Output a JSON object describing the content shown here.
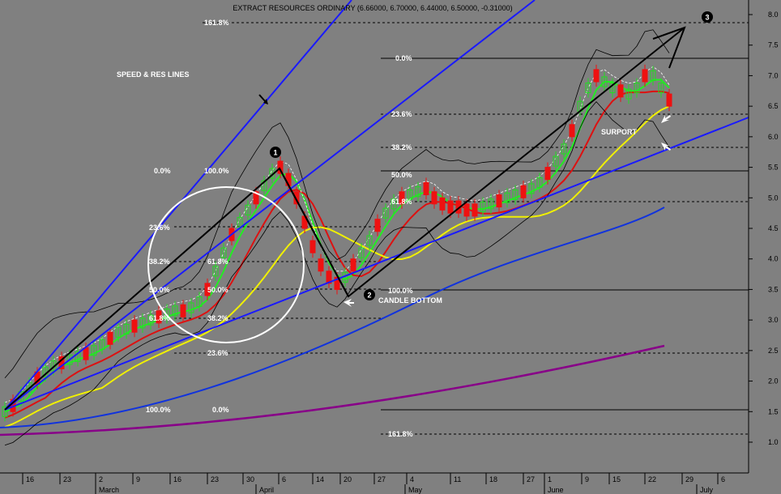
{
  "title": "EXTRACT RESOURCES ORDINARY (6.66000, 6.70000, 6.44000, 6.50000, -0.31000)",
  "colors": {
    "background": "#808080",
    "speed_lines": "#1a1aff",
    "trend_black": "#000000",
    "ma_green": "#22ee22",
    "ma_red": "#dd1111",
    "ma_yellow": "#f0f000",
    "ma_blue": "#1133dd",
    "ma_purple": "#880088",
    "bullish": "#22dd22",
    "bearish": "#ee1111"
  },
  "chart_data": {
    "type": "candlestick",
    "title": "EXTRACT RESOURCES ORDINARY (6.66000, 6.70000, 6.44000, 6.50000, -0.31000)",
    "ylim": [
      0.5,
      8.2
    ],
    "y_ticks": [
      "1.0",
      "1.5",
      "2.0",
      "2.5",
      "3.0",
      "3.5",
      "4.0",
      "4.5",
      "5.0",
      "5.5",
      "6.0",
      "6.5",
      "7.0",
      "7.5",
      "8.0"
    ],
    "x_ticks": [
      "16",
      "23",
      "2",
      "9",
      "16",
      "23",
      "30",
      "6",
      "14",
      "20",
      "27",
      "4",
      "11",
      "18",
      "27",
      "1",
      "9",
      "15",
      "22",
      "29",
      "6"
    ],
    "months": [
      "March",
      "April",
      "May",
      "June",
      "July"
    ],
    "last_bar": {
      "open": 6.66,
      "high": 6.7,
      "low": 6.44,
      "close": 6.5,
      "change": -0.31
    },
    "annotations": {
      "speed_label": "SPEED & RES LINES",
      "candle_bottom": "CANDLE BOTTOM",
      "support": "SURPORT",
      "point1": "1",
      "point2": "2",
      "point3": "3"
    },
    "fib_left": {
      "161.8": "161.8%",
      "0.0": "0.0%",
      "100.0": "100.0%",
      "23.6": "23.6%",
      "38.2": "38.2%",
      "61.8": "61.8%",
      "50.0": "50.0%",
      "61.8b": "61.8%",
      "38.2b": "38.2%",
      "23.6b": "23.6%",
      "100.0b": "100.0%",
      "0.0b": "0.0%"
    },
    "fib_right": {
      "0.0": "0.0%",
      "23.6": "23.6%",
      "38.2": "38.2%",
      "50.0": "50.0%",
      "61.8": "61.8%",
      "100.0": "100.0%",
      "161.8": "161.8%"
    }
  }
}
